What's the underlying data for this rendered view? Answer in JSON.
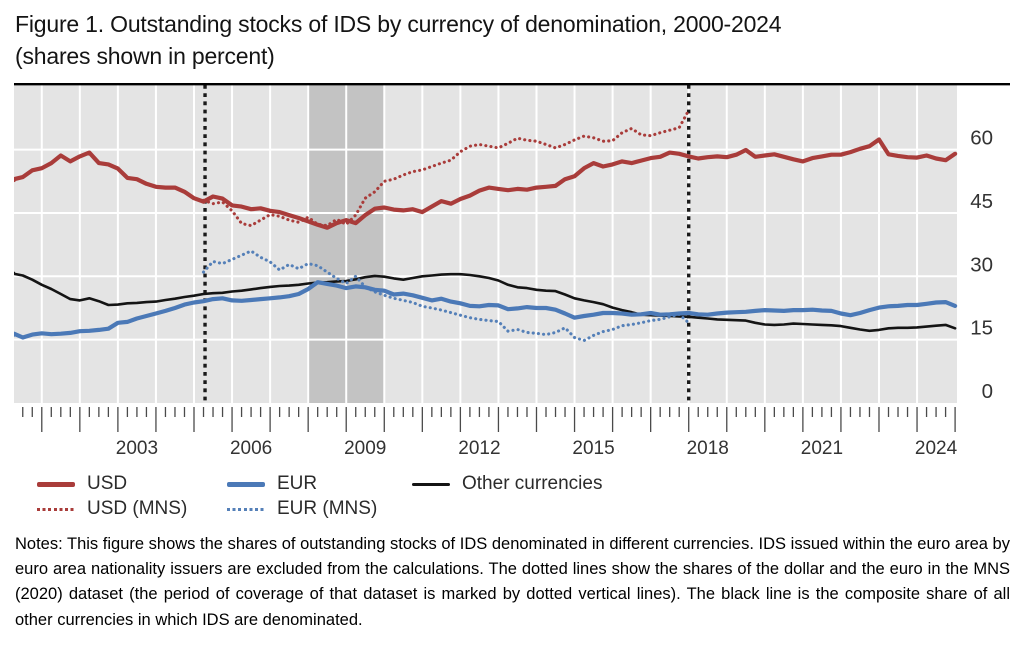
{
  "figure": {
    "title_line1": "Figure 1. Outstanding stocks of IDS by currency of denomination, 2000-2024",
    "title_line2": "(shares shown in percent)",
    "notes": "Notes: This figure shows the shares of outstanding stocks of IDS denominated in different currencies. IDS issued within the euro area by euro area nationality issuers are excluded from the calculations. The dotted lines show the shares of the dollar and the euro in the MNS (2020) dataset (the period of coverage of that dataset is marked by dotted vertical lines). The black line is the composite share of all other currencies in which IDS are denominated."
  },
  "legend": {
    "items": [
      {
        "id": "usd",
        "label": "USD",
        "color": "#a93c3a",
        "style": "solid"
      },
      {
        "id": "eur",
        "label": "EUR",
        "color": "#4b79b7",
        "style": "solid"
      },
      {
        "id": "other",
        "label": "Other currencies",
        "color": "#141414",
        "style": "solid"
      },
      {
        "id": "usd_mns",
        "label": "USD (MNS)",
        "color": "#a93c3a",
        "style": "dotted"
      },
      {
        "id": "eur_mns",
        "label": "EUR (MNS)",
        "color": "#5580b8",
        "style": "dotted"
      }
    ]
  },
  "chart_data": {
    "type": "line",
    "x_unit": "year, quarterly observations",
    "xlim": [
      2000.27,
      2025.05
    ],
    "ylim": [
      0,
      75.3
    ],
    "yticks": [
      0,
      15,
      30,
      45,
      60
    ],
    "xtick_year_labels": [
      2003,
      2006,
      2009,
      2012,
      2015,
      2018,
      2021,
      2024
    ],
    "grid": "white gridlines on gray panel, yearly vertical / every 15 horizontal",
    "legend_position": "below",
    "shaded_region": {
      "from": 2008.0,
      "to": 2010.0,
      "color": "#c3c3c3"
    },
    "vlines": {
      "x": [
        2005.29,
        2018.0
      ],
      "style": "dotted",
      "color": "#1a1a1a"
    },
    "colors": {
      "plot_bg": "#e4e4e4",
      "gridline": "#ffffff",
      "band": "#c3c3c3",
      "axis_text": "#333333",
      "tick": "#4a4a4a",
      "top_rule": "#000000"
    },
    "series": [
      {
        "name": "Other currencies",
        "id": "other",
        "color": "#141414",
        "style": "solid",
        "width": 2.6,
        "x_start": 2000.0,
        "x_step": 0.25,
        "values": [
          30.8,
          30.6,
          30.2,
          29.2,
          28.0,
          27.0,
          25.8,
          24.6,
          24.3,
          24.8,
          24.1,
          23.2,
          23.3,
          23.6,
          23.7,
          23.9,
          24.0,
          24.4,
          24.7,
          25.1,
          25.4,
          25.8,
          26.0,
          26.1,
          26.4,
          26.6,
          26.9,
          27.2,
          27.5,
          27.7,
          27.8,
          28.0,
          28.3,
          28.5,
          28.6,
          28.8,
          28.9,
          29.3,
          29.8,
          30.1,
          29.9,
          29.5,
          29.2,
          29.6,
          30.0,
          30.2,
          30.4,
          30.5,
          30.5,
          30.3,
          30.0,
          29.6,
          29.0,
          28.0,
          27.4,
          27.2,
          26.8,
          26.6,
          26.5,
          25.7,
          24.8,
          24.3,
          23.9,
          23.4,
          22.6,
          22.0,
          21.5,
          20.9,
          20.8,
          20.7,
          20.6,
          20.5,
          20.4,
          20.2,
          20.0,
          19.8,
          19.7,
          19.6,
          19.5,
          19.0,
          18.6,
          18.5,
          18.6,
          18.8,
          18.7,
          18.6,
          18.5,
          18.4,
          18.2,
          17.8,
          17.4,
          17.1,
          17.3,
          17.7,
          17.8,
          17.8,
          17.9,
          18.1,
          18.3,
          18.5,
          17.7
        ]
      },
      {
        "name": "USD (MNS)",
        "id": "usd_mns",
        "color": "#a93c3a",
        "style": "dotted",
        "width": 3.1,
        "x_start": 2005.25,
        "x_step": 0.25,
        "values": [
          48.0,
          47.2,
          47.6,
          45.5,
          42.5,
          42.0,
          43.3,
          44.6,
          44.2,
          43.3,
          42.8,
          44.0,
          42.3,
          42.0,
          43.5,
          42.3,
          44.5,
          48.5,
          50.0,
          52.5,
          53.0,
          54.0,
          54.8,
          55.2,
          56.0,
          56.8,
          57.5,
          59.5,
          60.8,
          61.2,
          60.8,
          60.4,
          61.5,
          62.7,
          62.2,
          62.0,
          61.2,
          60.4,
          61.2,
          62.3,
          63.2,
          62.8,
          62.0,
          62.1,
          64.0,
          65.0,
          63.5,
          63.3,
          64.0,
          64.6,
          65.2,
          69.3
        ]
      },
      {
        "name": "EUR (MNS)",
        "id": "eur_mns",
        "color": "#5580b8",
        "style": "dotted",
        "width": 3.1,
        "x_start": 2005.25,
        "x_step": 0.25,
        "values": [
          31.0,
          33.5,
          33.0,
          34.0,
          35.0,
          36.0,
          34.5,
          33.4,
          31.5,
          32.8,
          31.8,
          33.0,
          32.5,
          31.0,
          29.5,
          28.3,
          30.0,
          27.5,
          26.3,
          25.5,
          24.8,
          24.3,
          23.8,
          22.9,
          22.5,
          22.0,
          21.4,
          20.8,
          20.2,
          19.8,
          19.5,
          19.3,
          17.0,
          17.4,
          16.7,
          16.5,
          16.2,
          16.7,
          17.8,
          15.5,
          14.8,
          16.0,
          16.9,
          17.4,
          18.3,
          18.6,
          19.0,
          19.5,
          19.8,
          20.4,
          21.0,
          19.0
        ]
      },
      {
        "name": "EUR",
        "id": "eur",
        "color": "#4b79b7",
        "style": "solid",
        "width": 4.2,
        "x_start": 2000.0,
        "x_step": 0.25,
        "values": [
          16.2,
          16.4,
          15.5,
          16.2,
          16.5,
          16.3,
          16.4,
          16.6,
          17.0,
          17.1,
          17.3,
          17.6,
          19.0,
          19.2,
          20.0,
          20.6,
          21.2,
          21.8,
          22.5,
          23.3,
          23.8,
          24.1,
          24.6,
          24.8,
          24.3,
          24.2,
          24.4,
          24.6,
          24.8,
          25.0,
          25.3,
          25.8,
          27.0,
          28.6,
          28.2,
          27.8,
          27.2,
          27.6,
          27.4,
          26.8,
          26.6,
          25.7,
          25.9,
          25.5,
          24.9,
          24.3,
          24.7,
          24.0,
          23.6,
          23.0,
          22.9,
          23.2,
          23.1,
          22.2,
          22.4,
          22.7,
          22.5,
          22.5,
          22.1,
          21.2,
          20.2,
          20.6,
          20.9,
          21.3,
          21.3,
          21.2,
          20.9,
          21.0,
          21.3,
          20.9,
          21.0,
          21.2,
          21.3,
          21.0,
          20.9,
          21.2,
          21.4,
          21.5,
          21.6,
          21.8,
          22.0,
          21.9,
          21.8,
          22.0,
          22.0,
          22.1,
          21.9,
          21.8,
          21.2,
          20.8,
          21.3,
          22.0,
          22.6,
          22.9,
          23.0,
          23.2,
          23.2,
          23.5,
          23.8,
          23.9,
          23.0
        ]
      },
      {
        "name": "USD",
        "id": "usd",
        "color": "#a93c3a",
        "style": "solid",
        "width": 4.2,
        "x_start": 2000.0,
        "x_step": 0.25,
        "values": [
          52.8,
          53.0,
          53.5,
          55.1,
          55.6,
          56.8,
          58.6,
          57.2,
          58.4,
          59.3,
          56.8,
          56.5,
          55.5,
          53.3,
          53.0,
          51.9,
          51.2,
          51.0,
          51.0,
          50.0,
          48.5,
          47.7,
          48.9,
          48.4,
          46.8,
          46.5,
          45.9,
          46.1,
          45.5,
          45.2,
          44.5,
          43.8,
          43.0,
          42.2,
          41.5,
          42.6,
          43.3,
          42.6,
          44.5,
          46.0,
          46.3,
          45.8,
          45.6,
          45.9,
          45.2,
          46.5,
          47.8,
          47.2,
          48.3,
          49.1,
          50.3,
          51.0,
          50.7,
          50.4,
          50.7,
          50.5,
          51.0,
          51.2,
          51.4,
          53.0,
          53.7,
          55.6,
          56.8,
          56.0,
          56.5,
          57.2,
          56.8,
          57.4,
          58.0,
          58.3,
          59.3,
          59.0,
          58.4,
          57.9,
          58.2,
          58.4,
          58.2,
          58.8,
          59.9,
          58.3,
          58.6,
          58.9,
          58.3,
          57.7,
          57.2,
          58.0,
          58.4,
          58.8,
          58.8,
          59.4,
          60.2,
          60.8,
          62.4,
          58.9,
          58.5,
          58.2,
          58.1,
          58.6,
          57.9,
          57.5,
          59.0
        ]
      }
    ]
  }
}
